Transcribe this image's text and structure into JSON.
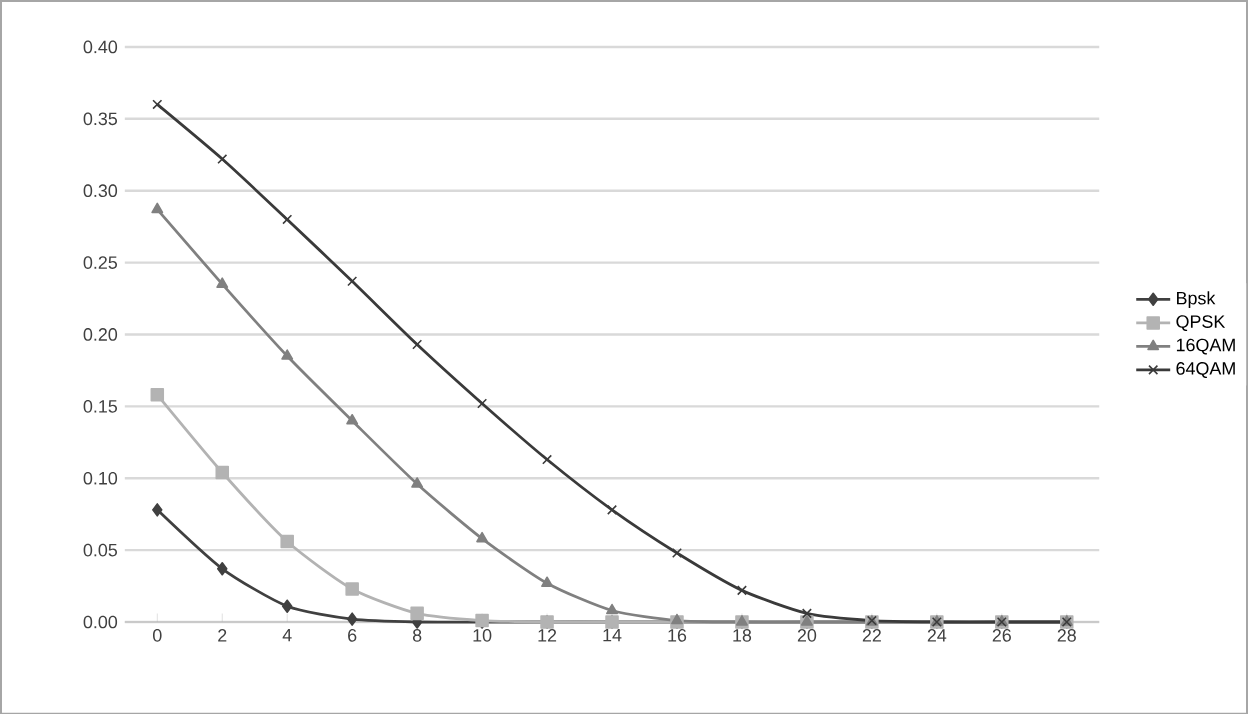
{
  "chart_data": {
    "type": "line",
    "categories": [
      "0",
      "2",
      "4",
      "6",
      "8",
      "10",
      "12",
      "14",
      "16",
      "18",
      "20",
      "22",
      "24",
      "26",
      "28"
    ],
    "series": [
      {
        "name": "Bpsk",
        "color": "#404040",
        "marker": "diamond",
        "values": [
          0.078,
          0.037,
          0.011,
          0.002,
          0.0,
          0,
          0,
          0,
          0,
          0,
          0,
          0,
          0,
          0,
          0
        ]
      },
      {
        "name": "QPSK",
        "color": "#b3b3b3",
        "marker": "square",
        "values": [
          0.158,
          0.104,
          0.056,
          0.023,
          0.006,
          0.001,
          0,
          0,
          0,
          0,
          0,
          0,
          0,
          0,
          0
        ]
      },
      {
        "name": "16QAM",
        "color": "#808080",
        "marker": "triangle",
        "values": [
          0.287,
          0.235,
          0.185,
          0.14,
          0.096,
          0.058,
          0.027,
          0.008,
          0.001,
          0,
          0,
          0,
          0,
          0,
          0
        ]
      },
      {
        "name": "64QAM",
        "color": "#3a3a3a",
        "marker": "cross",
        "values": [
          0.36,
          0.322,
          0.28,
          0.237,
          0.193,
          0.152,
          0.113,
          0.078,
          0.048,
          0.022,
          0.006,
          0.001,
          0,
          0,
          0
        ]
      }
    ],
    "ylim": [
      0,
      0.4
    ],
    "yticks": [
      {
        "value": 0,
        "label": "0.00"
      },
      {
        "value": 0.05,
        "label": "0.05"
      },
      {
        "value": 0.1,
        "label": "0.10"
      },
      {
        "value": 0.15,
        "label": "0.15"
      },
      {
        "value": 0.2,
        "label": "0.20"
      },
      {
        "value": 0.25,
        "label": "0.25"
      },
      {
        "value": 0.3,
        "label": "0.30"
      },
      {
        "value": 0.35,
        "label": "0.35"
      },
      {
        "value": 0.4,
        "label": "0.40"
      }
    ],
    "grid": "y",
    "legend": "right",
    "line_style": "solid"
  }
}
